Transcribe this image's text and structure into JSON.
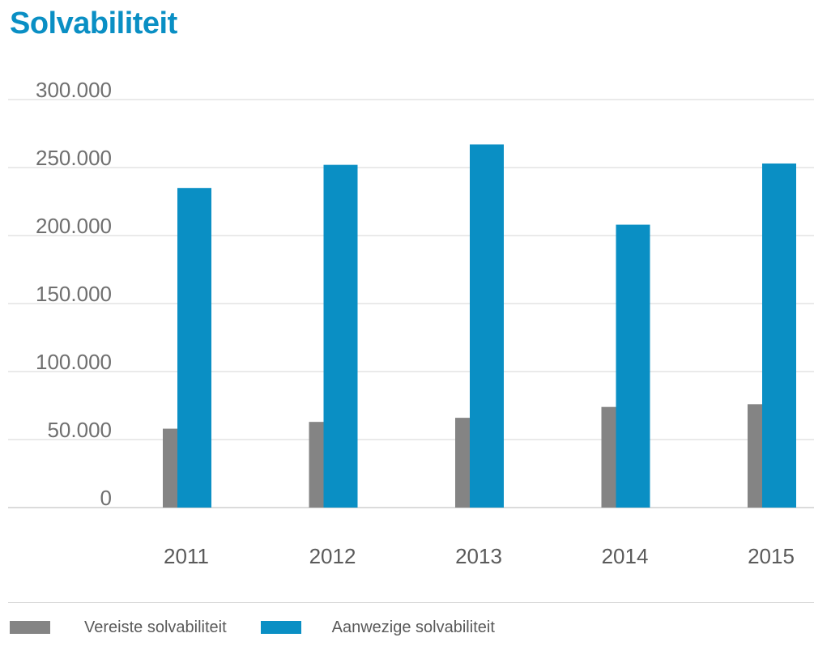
{
  "chart_data": {
    "type": "bar",
    "title": "Solvabiliteit",
    "xlabel": "",
    "ylabel": "",
    "categories": [
      "2011",
      "2012",
      "2013",
      "2014",
      "2015"
    ],
    "series": [
      {
        "name": "Vereiste solvabiliteit",
        "color": "#848484",
        "values": [
          58000,
          63000,
          66000,
          74000,
          76000
        ]
      },
      {
        "name": "Aanwezige solvabiliteit",
        "color": "#0a8fc4",
        "values": [
          235000,
          252000,
          267000,
          208000,
          253000
        ]
      }
    ],
    "ylim": [
      0,
      300000
    ],
    "y_ticks": [
      0,
      50000,
      100000,
      150000,
      200000,
      250000,
      300000
    ],
    "y_tick_labels": [
      "0",
      "50.000",
      "100.000",
      "150.000",
      "200.000",
      "250.000",
      "300.000"
    ],
    "grid": true,
    "legend_position": "bottom-left"
  }
}
